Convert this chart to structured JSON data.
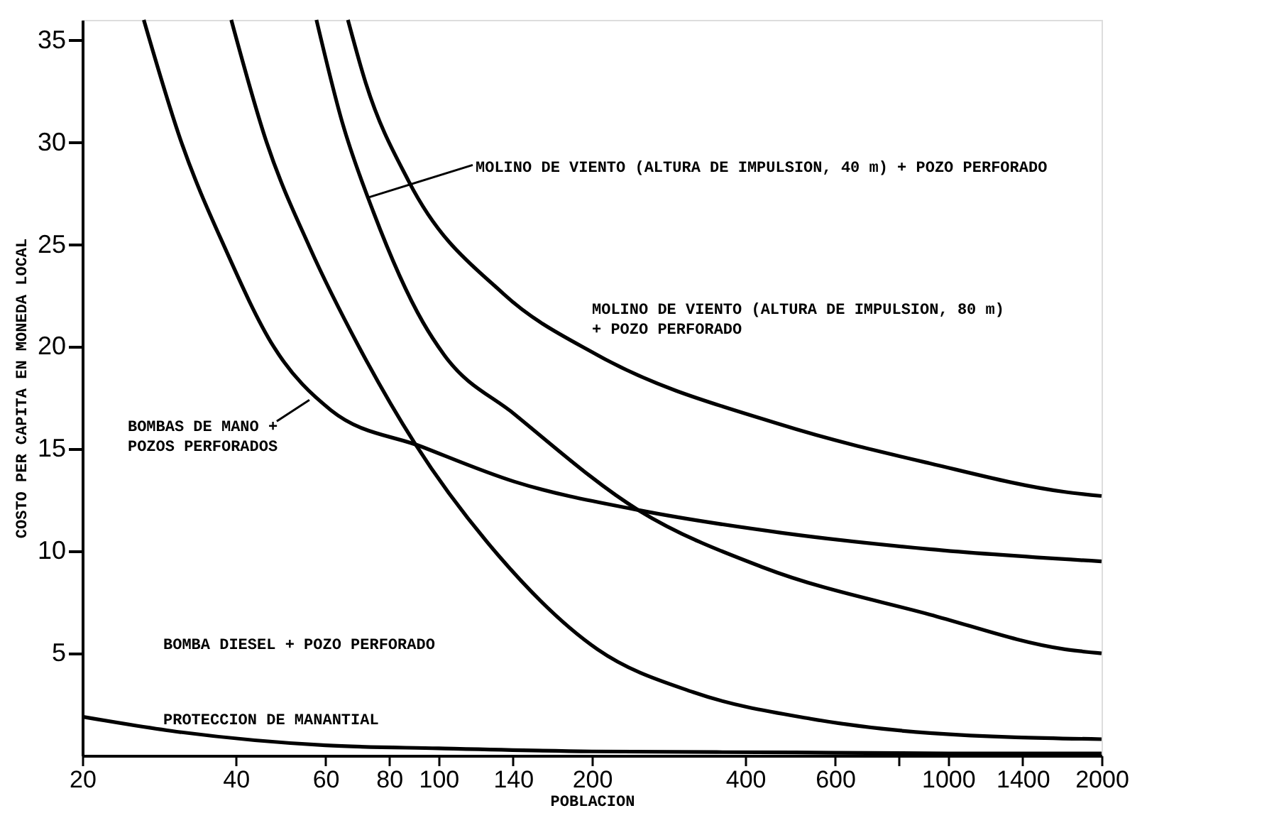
{
  "chart_data": {
    "type": "line",
    "xlabel": "POBLACION",
    "ylabel": "COSTO PER CAPITA EN MONEDA LOCAL",
    "log": "x",
    "grid": false,
    "marker": "none",
    "line_style": "solid",
    "xlim": [
      20,
      2000
    ],
    "ylim": [
      0,
      36
    ],
    "xticks": [
      20,
      40,
      60,
      80,
      100,
      140,
      200,
      400,
      600,
      {
        "value": 800,
        "label": null
      },
      1000,
      1400,
      2000
    ],
    "yticks": [
      5,
      10,
      15,
      20,
      25,
      30,
      35
    ],
    "series": [
      {
        "color": "#000000",
        "x": [
          26.4,
          31.3,
          38,
          47.5,
          61.5,
          93,
          141,
          248,
          471,
          918,
          2000
        ],
        "values": [
          36,
          30,
          24.9,
          20,
          16.9,
          15.1,
          13.4,
          12.0,
          10.9,
          10.1,
          9.5
        ]
      },
      {
        "color": "#000000",
        "x": [
          39.2,
          46,
          55.8,
          69.8,
          89.7,
          131,
          205,
          316,
          537,
          921,
          2000
        ],
        "values": [
          36,
          30,
          24.9,
          20,
          15.3,
          9.8,
          5.2,
          3.1,
          1.8,
          1.1,
          0.8
        ]
      },
      {
        "color": "#000000",
        "x": [
          57.6,
          64.7,
          74.5,
          93.2,
          102.6,
          141,
          247,
          434,
          920,
          1694,
          2000
        ],
        "values": [
          36,
          31,
          26.6,
          21.2,
          19.6,
          16.7,
          12.0,
          9.2,
          6.9,
          5.2,
          5.0
        ]
      },
      {
        "color": "#000000",
        "x": [
          66.4,
          72,
          87.4,
          134,
          205,
          469,
          920,
          1694,
          2000
        ],
        "values": [
          36,
          32.9,
          28.1,
          22.6,
          19.6,
          16.2,
          14.3,
          12.9,
          12.7
        ]
      },
      {
        "color": "#000000",
        "x": [
          20,
          30,
          60,
          100,
          200,
          500,
          1000,
          2000
        ],
        "values": [
          1.9,
          1.2,
          0.5,
          0.35,
          0.2,
          0.15,
          0.1,
          0.1
        ]
      }
    ],
    "annotations": [
      {
        "text": "MOLINO DE VIENTO (ALTURA DE IMPULSION, 40 m) + POZO PERFORADO",
        "x": 72.6,
        "y": 27.3
      },
      "MOLINO DE VIENTO (ALTURA DE IMPULSION, 80 m)\n+ POZO PERFORADO",
      {
        "text": "BOMBAS DE MANO +\nPOZOS PERFORADOS",
        "x": 55.8,
        "y": 17.4
      },
      "BOMBA DIESEL + POZO PERFORADO",
      "PROTECCION DE MANANTIAL"
    ]
  }
}
